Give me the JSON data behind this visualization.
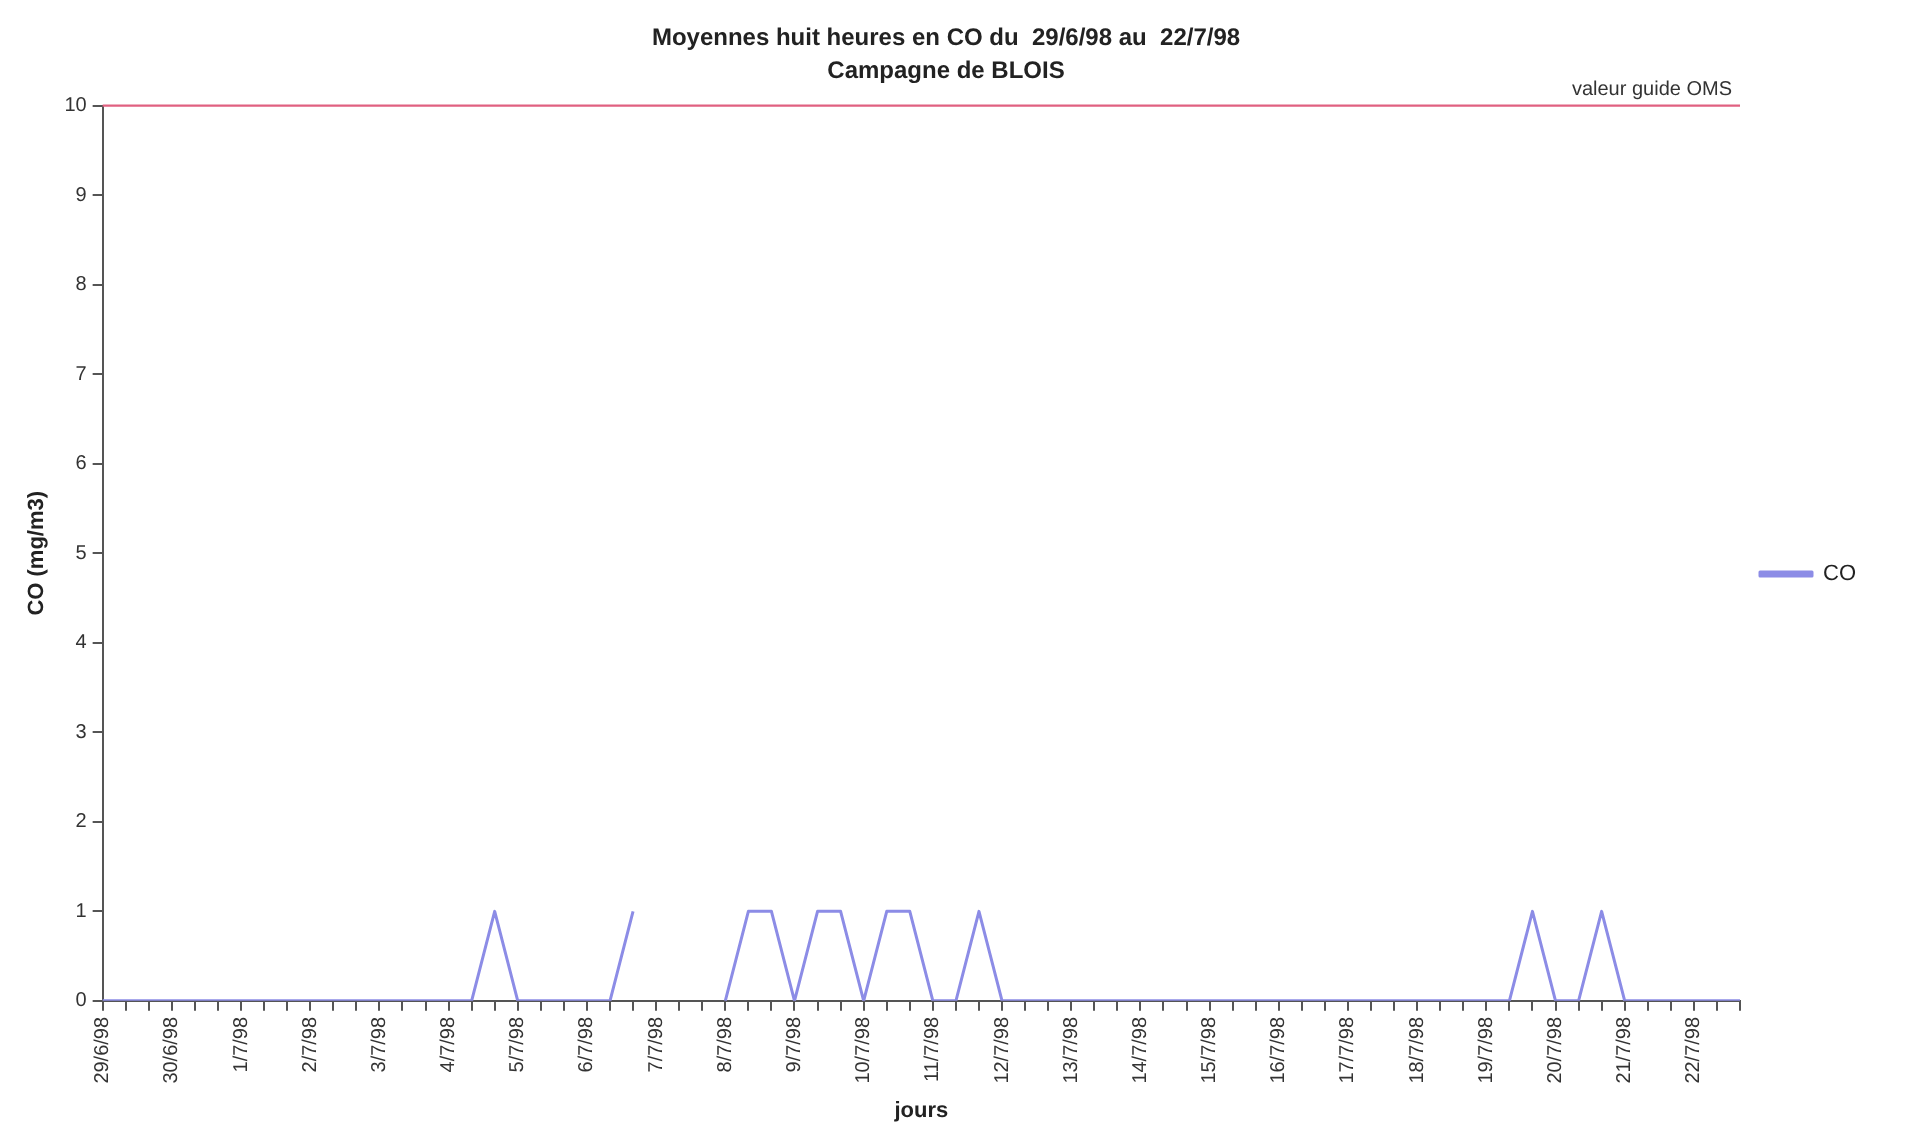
{
  "chart_data": {
    "type": "line",
    "title": "Moyennes huit heures en CO du  29/6/98 au  22/7/98",
    "subtitle": "Campagne de BLOIS",
    "xlabel": "jours",
    "ylabel": "CO (mg/m3)",
    "categories": [
      "29/6/98",
      null,
      null,
      "30/6/98",
      null,
      null,
      "1/7/98",
      null,
      null,
      "2/7/98",
      null,
      null,
      "3/7/98",
      null,
      null,
      "4/7/98",
      null,
      null,
      "5/7/98",
      null,
      null,
      "6/7/98",
      null,
      null,
      "7/7/98",
      null,
      null,
      "8/7/98",
      null,
      null,
      "9/7/98",
      null,
      null,
      "10/7/98",
      null,
      null,
      "11/7/98",
      null,
      null,
      "12/7/98",
      null,
      null,
      "13/7/98",
      null,
      null,
      "14/7/98",
      null,
      null,
      "15/7/98",
      null,
      null,
      "16/7/98",
      null,
      null,
      "17/7/98",
      null,
      null,
      "18/7/98",
      null,
      null,
      "19/7/98",
      null,
      null,
      "20/7/98",
      null,
      null,
      "21/7/98",
      null,
      null,
      "22/7/98",
      null,
      null
    ],
    "series": [
      {
        "name": "CO",
        "color": "#8c8ce6",
        "values": [
          0,
          0,
          0,
          0,
          0,
          0,
          0,
          0,
          0,
          0,
          0,
          0,
          0,
          0,
          0,
          0,
          0,
          1,
          0,
          0,
          0,
          0,
          0,
          1,
          null,
          null,
          null,
          0,
          1,
          1,
          0,
          1,
          1,
          0,
          1,
          1,
          0,
          0,
          1,
          0,
          0,
          0,
          0,
          0,
          0,
          0,
          0,
          0,
          0,
          0,
          0,
          0,
          0,
          0,
          0,
          0,
          0,
          0,
          0,
          0,
          0,
          0,
          1,
          0,
          0,
          1,
          0,
          0,
          0,
          0,
          0,
          0
        ]
      }
    ],
    "ylim": [
      0,
      10
    ],
    "yticks": [
      0,
      1,
      2,
      3,
      4,
      5,
      6,
      7,
      8,
      9,
      10
    ],
    "grid": false,
    "legend": "right",
    "marker": "none",
    "line_style": "solid",
    "ref_lines": [
      {
        "axis": "y",
        "value": 10,
        "label": "valeur guide OMS",
        "color": "#e06080",
        "line_style": "solid"
      }
    ]
  }
}
